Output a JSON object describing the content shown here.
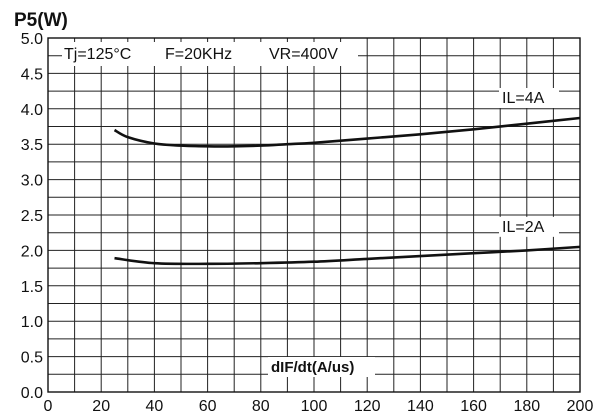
{
  "chart_data": {
    "type": "line",
    "ylabel": "P5(W)",
    "xlabel": "dIF/dt(A/us)",
    "conditions": [
      "Tj=125°C",
      "F=20KHz",
      "VR=400V"
    ],
    "xlim": [
      0,
      200
    ],
    "ylim": [
      0,
      5.0
    ],
    "x_ticks": [
      0,
      20,
      40,
      60,
      80,
      100,
      120,
      140,
      160,
      180,
      200
    ],
    "y_ticks": [
      "0.0",
      "0.5",
      "1.0",
      "1.5",
      "2.0",
      "2.5",
      "3.0",
      "3.5",
      "4.0",
      "4.5",
      "5.0"
    ],
    "grid": true,
    "series": [
      {
        "name": "IL=4A",
        "x": [
          25,
          30,
          40,
          50,
          60,
          70,
          80,
          90,
          100,
          120,
          140,
          160,
          180,
          200
        ],
        "y": [
          3.7,
          3.6,
          3.51,
          3.48,
          3.47,
          3.47,
          3.48,
          3.5,
          3.52,
          3.58,
          3.64,
          3.71,
          3.79,
          3.87
        ]
      },
      {
        "name": "IL=2A",
        "x": [
          25,
          40,
          60,
          80,
          100,
          120,
          140,
          160,
          180,
          200
        ],
        "y": [
          1.89,
          1.82,
          1.81,
          1.82,
          1.84,
          1.88,
          1.92,
          1.96,
          2.0,
          2.05
        ]
      }
    ]
  }
}
